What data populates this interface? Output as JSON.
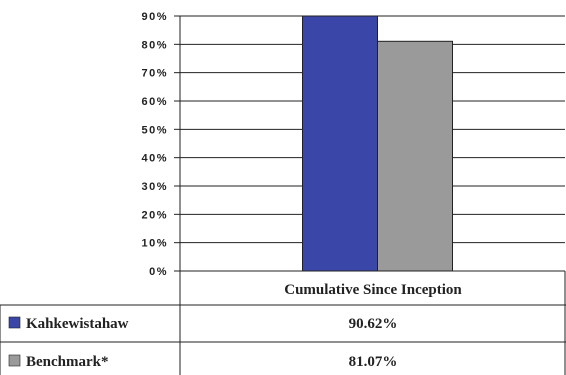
{
  "chart_data": {
    "type": "bar",
    "categories": [
      "Cumulative Since Inception"
    ],
    "series": [
      {
        "name": "Kahkewistahaw",
        "values": [
          90.62
        ],
        "value_label": "90.62%",
        "color": "#3a47a8"
      },
      {
        "name": "Benchmark*",
        "values": [
          81.07
        ],
        "value_label": "81.07%",
        "color": "#9a9a9a"
      }
    ],
    "ylim": [
      0,
      90
    ],
    "yticks": [
      0,
      10,
      20,
      30,
      40,
      50,
      60,
      70,
      80,
      90
    ],
    "ytick_labels": [
      "0%",
      "10%",
      "20%",
      "30%",
      "40%",
      "50%",
      "60%",
      "70%",
      "80%",
      "90%"
    ],
    "grid": true,
    "legend": "data-table-below"
  }
}
